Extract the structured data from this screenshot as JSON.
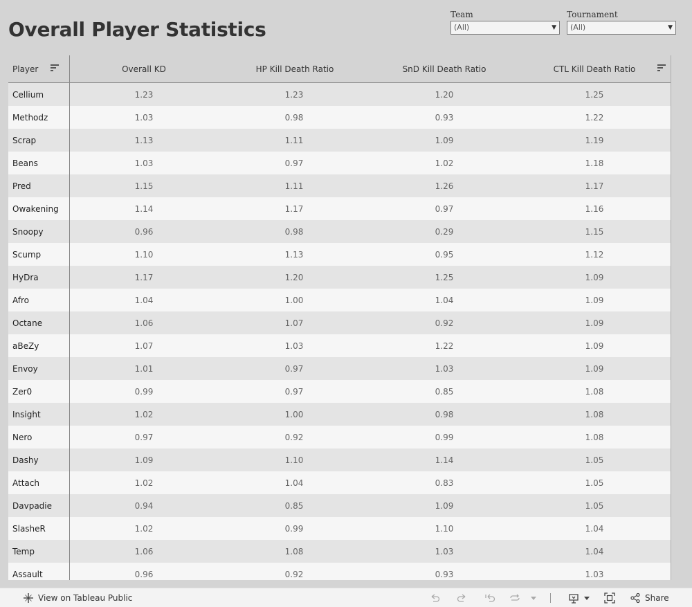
{
  "title": "Overall Player Statistics",
  "filters": [
    {
      "label": "Team",
      "value": "(All)"
    },
    {
      "label": "Tournament",
      "value": "(All)"
    }
  ],
  "table": {
    "columns": [
      "Player",
      "Overall KD",
      "HP Kill Death Ratio",
      "SnD Kill Death Ratio",
      "CTL Kill Death Ratio"
    ],
    "rows": [
      [
        "Cellium",
        "1.23",
        "1.23",
        "1.20",
        "1.25"
      ],
      [
        "Methodz",
        "1.03",
        "0.98",
        "0.93",
        "1.22"
      ],
      [
        "Scrap",
        "1.13",
        "1.11",
        "1.09",
        "1.19"
      ],
      [
        "Beans",
        "1.03",
        "0.97",
        "1.02",
        "1.18"
      ],
      [
        "Pred",
        "1.15",
        "1.11",
        "1.26",
        "1.17"
      ],
      [
        "Owakening",
        "1.14",
        "1.17",
        "0.97",
        "1.16"
      ],
      [
        "Snoopy",
        "0.96",
        "0.98",
        "0.29",
        "1.15"
      ],
      [
        "Scump",
        "1.10",
        "1.13",
        "0.95",
        "1.12"
      ],
      [
        "HyDra",
        "1.17",
        "1.20",
        "1.25",
        "1.09"
      ],
      [
        "Afro",
        "1.04",
        "1.00",
        "1.04",
        "1.09"
      ],
      [
        "Octane",
        "1.06",
        "1.07",
        "0.92",
        "1.09"
      ],
      [
        "aBeZy",
        "1.07",
        "1.03",
        "1.22",
        "1.09"
      ],
      [
        "Envoy",
        "1.01",
        "0.97",
        "1.03",
        "1.09"
      ],
      [
        "Zer0",
        "0.99",
        "0.97",
        "0.85",
        "1.08"
      ],
      [
        "Insight",
        "1.02",
        "1.00",
        "0.98",
        "1.08"
      ],
      [
        "Nero",
        "0.97",
        "0.92",
        "0.99",
        "1.08"
      ],
      [
        "Dashy",
        "1.09",
        "1.10",
        "1.14",
        "1.05"
      ],
      [
        "Attach",
        "1.02",
        "1.04",
        "0.83",
        "1.05"
      ],
      [
        "Davpadie",
        "0.94",
        "0.85",
        "1.09",
        "1.05"
      ],
      [
        "SlasheR",
        "1.02",
        "0.99",
        "1.10",
        "1.04"
      ],
      [
        "Temp",
        "1.06",
        "1.08",
        "1.03",
        "1.04"
      ],
      [
        "Assault",
        "0.96",
        "0.92",
        "0.93",
        "1.03"
      ]
    ]
  },
  "footer": {
    "view_link": "View on Tableau Public",
    "share_label": "Share"
  },
  "colors": {
    "background": "#d4d4d4",
    "row_odd": "#e4e4e4",
    "row_even": "#f6f6f6",
    "text": "#333333"
  }
}
